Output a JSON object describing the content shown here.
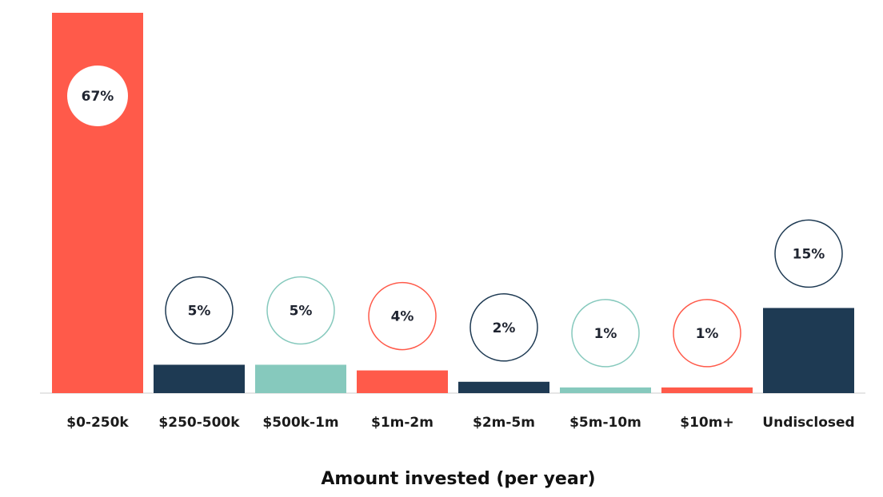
{
  "chart_data": {
    "type": "bar",
    "title": "",
    "xlabel": "Amount invested (per year)",
    "ylabel": "",
    "ylim": [
      0,
      67
    ],
    "grid": false,
    "legend": "none",
    "categories": [
      "$0-250k",
      "$250-500k",
      "$500k-1m",
      "$1m-2m",
      "$2m-5m",
      "$5m-10m",
      "$10m+",
      "Undisclosed"
    ],
    "values": [
      67,
      5,
      5,
      4,
      2,
      1,
      1,
      15
    ],
    "value_labels": [
      "67%",
      "5%",
      "5%",
      "4%",
      "2%",
      "1%",
      "1%",
      "15%"
    ],
    "bar_colors": [
      "#ff5a4a",
      "#1e3a53",
      "#86c9bd",
      "#ff5a4a",
      "#1e3a53",
      "#86c9bd",
      "#ff5a4a",
      "#1e3a53"
    ]
  }
}
